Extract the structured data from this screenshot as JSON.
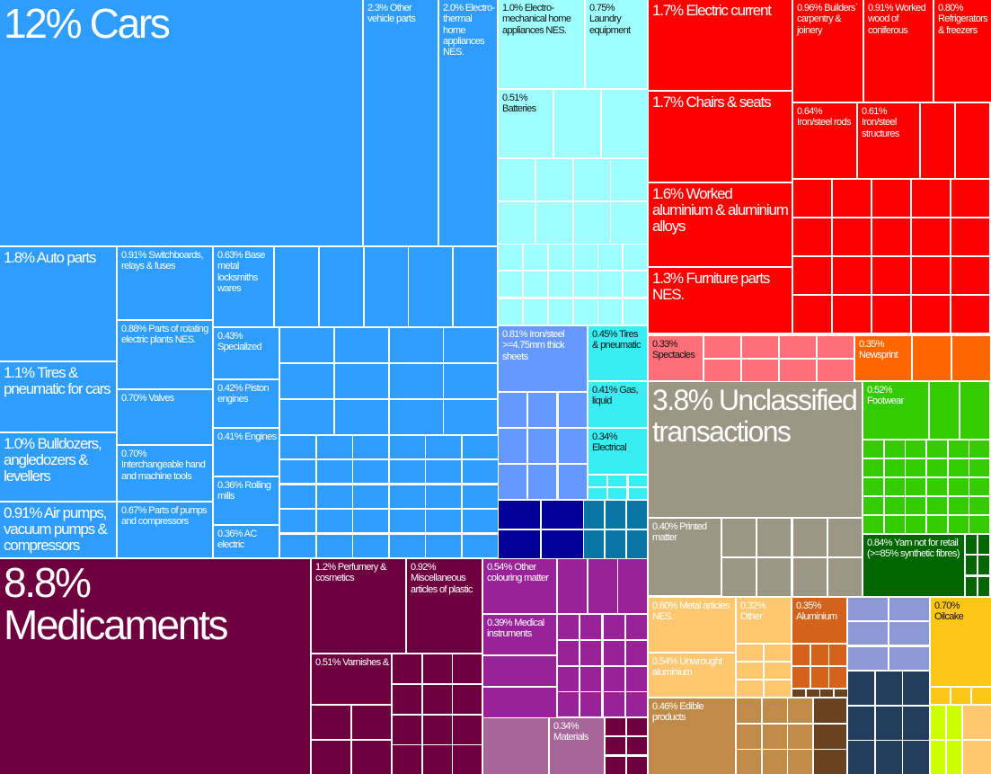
{
  "chart_data": {
    "type": "treemap",
    "title": "",
    "colors": {
      "machinery": "#2e9dfd",
      "appliances": "#9ffefe",
      "cyan": "#38eef2",
      "steel": "#6699ff",
      "navy": "#000099",
      "teal": "#0776a6",
      "red": "#ff0000",
      "pink": "#ff6f7a",
      "orange": "#ff6600",
      "gray": "#9c9784",
      "green": "#33cc00",
      "darkgreen": "#006600",
      "chem": "#6f0040",
      "purple": "#992299",
      "mauve": "#a66699",
      "lightorange": "#ffc870",
      "rust": "#d4621a",
      "tan": "#c08a48",
      "brown": "#6b4220",
      "lavender": "#8c99d4",
      "slate": "#223e5c",
      "yellow": "#ffc61a",
      "lime": "#ccff00"
    },
    "tiles": [
      {
        "label": "12% Cars",
        "value": 12
      },
      {
        "label": "2.3% Other vehicle parts",
        "value": 2.3
      },
      {
        "label": "2.0% Electro-thermal home appliances NES.",
        "value": 2.0
      },
      {
        "label": "1.8% Auto parts",
        "value": 1.8
      },
      {
        "label": "1.1% Tires & pneumatic for cars",
        "value": 1.1
      },
      {
        "label": "1.0% Bulldozers, angledozers & levellers",
        "value": 1.0
      },
      {
        "label": "0.91% Air pumps, vacuum pumps & compressors",
        "value": 0.91
      },
      {
        "label": "0.91% Switchboards, relays & fuses",
        "value": 0.91
      },
      {
        "label": "0.88% Parts of rotating electric plants NES.",
        "value": 0.88
      },
      {
        "label": "0.70% Valves",
        "value": 0.7
      },
      {
        "label": "0.70% Interchangeable hand and machine tools",
        "value": 0.7
      },
      {
        "label": "0.67% Parts of pumps and compressors",
        "value": 0.67
      },
      {
        "label": "0.63% Base metal locksmiths wares",
        "value": 0.63
      },
      {
        "label": "0.43% Specialized",
        "value": 0.43
      },
      {
        "label": "0.42% Piston engines",
        "value": 0.42
      },
      {
        "label": "0.41% Engines",
        "value": 0.41
      },
      {
        "label": "0.36% Rolling mills",
        "value": 0.36
      },
      {
        "label": "0.36% AC electric",
        "value": 0.36
      },
      {
        "label": "1.0% Electro-mechanical home appliances NES.",
        "value": 1.0
      },
      {
        "label": "0.75% Laundry equipment",
        "value": 0.75
      },
      {
        "label": "0.51% Batteries",
        "value": 0.51
      },
      {
        "label": "0.81% Iron/steel >=4.75mm thick sheets",
        "value": 0.81
      },
      {
        "label": "0.45% Tires & pneumatic",
        "value": 0.45
      },
      {
        "label": "0.41% Gas, liquid",
        "value": 0.41
      },
      {
        "label": "0.34% Electrical",
        "value": 0.34
      },
      {
        "label": "1.7% Electric current",
        "value": 1.7
      },
      {
        "label": "1.7% Chairs & seats",
        "value": 1.7
      },
      {
        "label": "1.6% Worked aluminium & aluminium alloys",
        "value": 1.6
      },
      {
        "label": "1.3% Furniture parts NES.",
        "value": 1.3
      },
      {
        "label": "0.96% Builders` carpentry & joinery",
        "value": 0.96
      },
      {
        "label": "0.91% Worked wood of coniferous",
        "value": 0.91
      },
      {
        "label": "0.80% Refrigerators & freezers",
        "value": 0.8
      },
      {
        "label": "0.64% Iron/steel rods",
        "value": 0.64
      },
      {
        "label": "0.61% Iron/steel structures",
        "value": 0.61
      },
      {
        "label": "0.33% Spectacles",
        "value": 0.33
      },
      {
        "label": "0.35% Newsprint",
        "value": 0.35
      },
      {
        "label": "3.8% Unclassified transactions",
        "value": 3.8
      },
      {
        "label": "0.40% Printed matter",
        "value": 0.4
      },
      {
        "label": "0.52% Footwear",
        "value": 0.52
      },
      {
        "label": "0.84% Yarn not for retail (>=85% synthetic fibres)",
        "value": 0.84
      },
      {
        "label": "8.8% Medicaments",
        "value": 8.8
      },
      {
        "label": "1.2% Perfumery & cosmetics",
        "value": 1.2
      },
      {
        "label": "0.92% Miscellaneous articles of plastic",
        "value": 0.92
      },
      {
        "label": "0.51% Varnishes &",
        "value": 0.51
      },
      {
        "label": "0.54% Other colouring matter",
        "value": 0.54
      },
      {
        "label": "0.39% Medical instruments",
        "value": 0.39
      },
      {
        "label": "0.34% Materials",
        "value": 0.34
      },
      {
        "label": "0.60% Metal articles NES.",
        "value": 0.6
      },
      {
        "label": "0.54% Unwrought aluminium",
        "value": 0.54
      },
      {
        "label": "0.32% Other",
        "value": 0.32
      },
      {
        "label": "0.35% Aluminium",
        "value": 0.35
      },
      {
        "label": "0.46% Edible products",
        "value": 0.46
      },
      {
        "label": "0.70% Oilcake",
        "value": 0.7
      }
    ]
  }
}
